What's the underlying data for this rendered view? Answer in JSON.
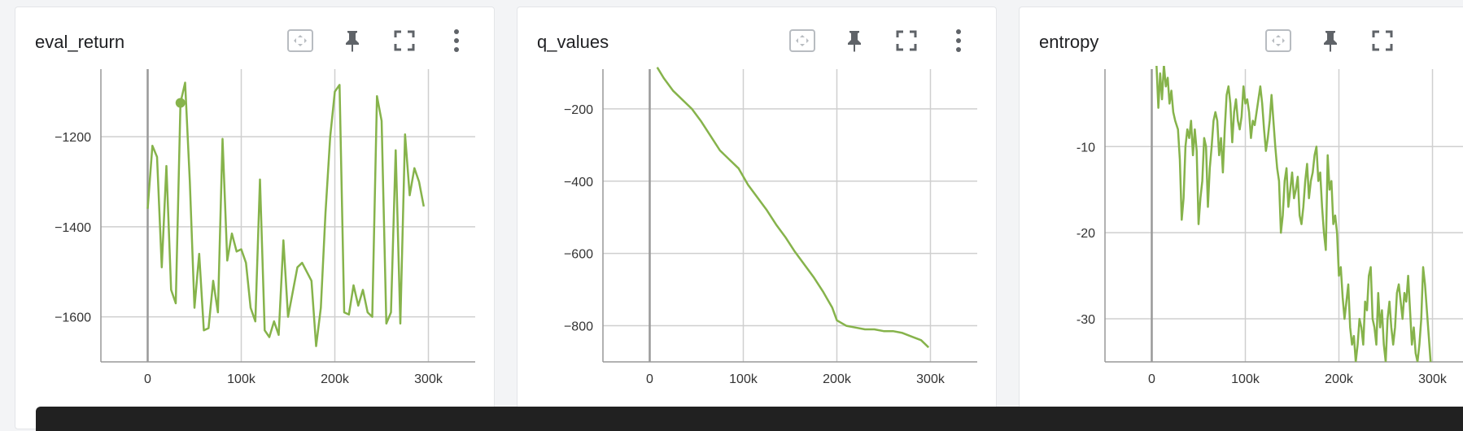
{
  "cards": [
    {
      "title": "eval_return",
      "toolbar": [
        "fit-domain-icon",
        "pin-icon",
        "fullscreen-icon",
        "more-vert-icon"
      ]
    },
    {
      "title": "q_values",
      "toolbar": [
        "fit-domain-icon",
        "pin-icon",
        "fullscreen-icon",
        "more-vert-icon"
      ]
    },
    {
      "title": "entropy",
      "toolbar": [
        "fit-domain-icon",
        "pin-icon",
        "fullscreen-icon"
      ]
    }
  ],
  "colors": {
    "line": "#86b34b",
    "grid": "#cfcfcf",
    "axis": "#999999",
    "icon": "#5f6368",
    "icon_light": "#b8bcc1"
  },
  "chart_data": [
    {
      "type": "line",
      "title": "eval_return",
      "xlim": [
        -50000,
        350000
      ],
      "ylim": [
        -1700,
        -1050
      ],
      "xticks": [
        0,
        100000,
        200000,
        300000
      ],
      "xtick_labels": [
        "0",
        "100k",
        "200k",
        "300k"
      ],
      "yticks": [
        -1200,
        -1400,
        -1600
      ],
      "ytick_labels": [
        "−1200",
        "−1400",
        "−1600"
      ],
      "grid": true,
      "highlight_point": {
        "x": 35000,
        "y": -1125
      },
      "series": [
        {
          "points": [
            [
              0,
              -1360
            ],
            [
              5000,
              -1220
            ],
            [
              10000,
              -1245
            ],
            [
              15000,
              -1490
            ],
            [
              20000,
              -1265
            ],
            [
              25000,
              -1540
            ],
            [
              30000,
              -1570
            ],
            [
              35000,
              -1125
            ],
            [
              40000,
              -1080
            ],
            [
              45000,
              -1300
            ],
            [
              50000,
              -1580
            ],
            [
              55000,
              -1460
            ],
            [
              60000,
              -1630
            ],
            [
              65000,
              -1625
            ],
            [
              70000,
              -1520
            ],
            [
              75000,
              -1590
            ],
            [
              80000,
              -1205
            ],
            [
              85000,
              -1475
            ],
            [
              90000,
              -1415
            ],
            [
              95000,
              -1455
            ],
            [
              100000,
              -1450
            ],
            [
              105000,
              -1480
            ],
            [
              110000,
              -1580
            ],
            [
              115000,
              -1610
            ],
            [
              120000,
              -1295
            ],
            [
              125000,
              -1630
            ],
            [
              130000,
              -1645
            ],
            [
              135000,
              -1610
            ],
            [
              140000,
              -1640
            ],
            [
              145000,
              -1430
            ],
            [
              150000,
              -1600
            ],
            [
              160000,
              -1490
            ],
            [
              165000,
              -1480
            ],
            [
              175000,
              -1520
            ],
            [
              180000,
              -1665
            ],
            [
              185000,
              -1580
            ],
            [
              190000,
              -1370
            ],
            [
              195000,
              -1200
            ],
            [
              200000,
              -1100
            ],
            [
              205000,
              -1085
            ],
            [
              210000,
              -1590
            ],
            [
              215000,
              -1595
            ],
            [
              220000,
              -1530
            ],
            [
              225000,
              -1575
            ],
            [
              230000,
              -1540
            ],
            [
              235000,
              -1590
            ],
            [
              240000,
              -1600
            ],
            [
              245000,
              -1110
            ],
            [
              250000,
              -1165
            ],
            [
              255000,
              -1615
            ],
            [
              260000,
              -1590
            ],
            [
              265000,
              -1230
            ],
            [
              270000,
              -1615
            ],
            [
              275000,
              -1195
            ],
            [
              280000,
              -1330
            ],
            [
              285000,
              -1270
            ],
            [
              290000,
              -1300
            ],
            [
              295000,
              -1355
            ]
          ]
        }
      ]
    },
    {
      "type": "line",
      "title": "q_values",
      "xlim": [
        -50000,
        350000
      ],
      "ylim": [
        -900,
        -90
      ],
      "xticks": [
        0,
        100000,
        200000,
        300000
      ],
      "xtick_labels": [
        "0",
        "100k",
        "200k",
        "300k"
      ],
      "yticks": [
        -200,
        -400,
        -600,
        -800
      ],
      "ytick_labels": [
        "−200",
        "−400",
        "−600",
        "−800"
      ],
      "grid": true,
      "series": [
        {
          "points": [
            [
              8000,
              -85
            ],
            [
              15000,
              -115
            ],
            [
              25000,
              -150
            ],
            [
              35000,
              -175
            ],
            [
              45000,
              -200
            ],
            [
              55000,
              -235
            ],
            [
              65000,
              -275
            ],
            [
              75000,
              -315
            ],
            [
              85000,
              -340
            ],
            [
              95000,
              -365
            ],
            [
              105000,
              -410
            ],
            [
              115000,
              -445
            ],
            [
              125000,
              -480
            ],
            [
              135000,
              -520
            ],
            [
              145000,
              -555
            ],
            [
              155000,
              -595
            ],
            [
              165000,
              -630
            ],
            [
              175000,
              -665
            ],
            [
              185000,
              -705
            ],
            [
              195000,
              -750
            ],
            [
              200000,
              -785
            ],
            [
              210000,
              -800
            ],
            [
              220000,
              -805
            ],
            [
              230000,
              -810
            ],
            [
              240000,
              -810
            ],
            [
              250000,
              -815
            ],
            [
              260000,
              -815
            ],
            [
              270000,
              -820
            ],
            [
              280000,
              -830
            ],
            [
              290000,
              -840
            ],
            [
              298000,
              -860
            ]
          ]
        }
      ]
    },
    {
      "type": "line",
      "title": "entropy",
      "xlim": [
        -50000,
        350000
      ],
      "ylim": [
        -35,
        -1
      ],
      "xticks": [
        0,
        100000,
        200000,
        300000
      ],
      "xtick_labels": [
        "0",
        "100k",
        "200k",
        "300k"
      ],
      "yticks": [
        -10,
        -20,
        -30
      ],
      "ytick_labels": [
        "-10",
        "-20",
        "-30"
      ],
      "grid": true,
      "series": [
        {
          "points": [
            [
              5000,
              -0.5
            ],
            [
              7000,
              -5.5
            ],
            [
              9000,
              -1.5
            ],
            [
              11000,
              -4.5
            ],
            [
              13000,
              -0.5
            ],
            [
              15000,
              -3
            ],
            [
              17000,
              -2
            ],
            [
              19000,
              -5
            ],
            [
              21000,
              -3.5
            ],
            [
              23000,
              -6
            ],
            [
              25000,
              -7
            ],
            [
              28000,
              -8
            ],
            [
              30000,
              -11.5
            ],
            [
              32000,
              -18.5
            ],
            [
              34000,
              -16
            ],
            [
              36000,
              -10
            ],
            [
              38000,
              -8
            ],
            [
              40000,
              -9
            ],
            [
              42000,
              -7
            ],
            [
              44000,
              -11
            ],
            [
              46000,
              -8
            ],
            [
              48000,
              -10.5
            ],
            [
              50000,
              -19
            ],
            [
              52000,
              -16
            ],
            [
              54000,
              -14
            ],
            [
              56000,
              -9
            ],
            [
              58000,
              -10
            ],
            [
              60000,
              -17
            ],
            [
              62000,
              -12.5
            ],
            [
              64000,
              -10
            ],
            [
              66000,
              -7
            ],
            [
              68000,
              -6
            ],
            [
              70000,
              -7
            ],
            [
              72000,
              -11
            ],
            [
              74000,
              -9
            ],
            [
              76000,
              -13
            ],
            [
              78000,
              -8
            ],
            [
              80000,
              -4
            ],
            [
              82000,
              -3
            ],
            [
              84000,
              -5
            ],
            [
              86000,
              -9.5
            ],
            [
              88000,
              -6
            ],
            [
              90000,
              -4.5
            ],
            [
              92000,
              -7
            ],
            [
              94000,
              -8
            ],
            [
              96000,
              -6.5
            ],
            [
              98000,
              -3
            ],
            [
              100000,
              -5
            ],
            [
              102000,
              -4.5
            ],
            [
              104000,
              -6
            ],
            [
              106000,
              -9
            ],
            [
              108000,
              -7
            ],
            [
              110000,
              -7.5
            ],
            [
              112000,
              -6
            ],
            [
              114000,
              -4.5
            ],
            [
              116000,
              -3
            ],
            [
              118000,
              -5
            ],
            [
              120000,
              -8
            ],
            [
              122000,
              -10.5
            ],
            [
              124000,
              -9
            ],
            [
              126000,
              -7
            ],
            [
              128000,
              -4
            ],
            [
              130000,
              -7
            ],
            [
              132000,
              -10
            ],
            [
              134000,
              -12.5
            ],
            [
              136000,
              -14
            ],
            [
              138000,
              -20
            ],
            [
              140000,
              -18
            ],
            [
              142000,
              -14
            ],
            [
              144000,
              -12.5
            ],
            [
              146000,
              -17
            ],
            [
              148000,
              -15
            ],
            [
              150000,
              -13
            ],
            [
              152000,
              -16
            ],
            [
              154000,
              -15
            ],
            [
              156000,
              -13.5
            ],
            [
              158000,
              -18
            ],
            [
              160000,
              -19
            ],
            [
              162000,
              -17
            ],
            [
              164000,
              -14
            ],
            [
              166000,
              -12
            ],
            [
              168000,
              -16
            ],
            [
              170000,
              -14
            ],
            [
              172000,
              -13
            ],
            [
              174000,
              -11
            ],
            [
              176000,
              -10
            ],
            [
              178000,
              -14
            ],
            [
              180000,
              -13
            ],
            [
              182000,
              -17
            ],
            [
              184000,
              -20
            ],
            [
              186000,
              -22
            ],
            [
              188000,
              -11
            ],
            [
              190000,
              -15
            ],
            [
              192000,
              -14
            ],
            [
              194000,
              -19
            ],
            [
              196000,
              -18
            ],
            [
              198000,
              -20
            ],
            [
              200000,
              -25
            ],
            [
              202000,
              -24
            ],
            [
              204000,
              -27.5
            ],
            [
              206000,
              -30
            ],
            [
              208000,
              -28
            ],
            [
              210000,
              -26
            ],
            [
              212000,
              -31
            ],
            [
              214000,
              -33
            ],
            [
              216000,
              -32
            ],
            [
              218000,
              -35
            ],
            [
              220000,
              -33
            ],
            [
              222000,
              -30
            ],
            [
              224000,
              -31
            ],
            [
              226000,
              -33
            ],
            [
              228000,
              -28
            ],
            [
              230000,
              -29
            ],
            [
              232000,
              -25
            ],
            [
              234000,
              -24
            ],
            [
              236000,
              -30
            ],
            [
              238000,
              -31
            ],
            [
              240000,
              -33
            ],
            [
              242000,
              -27
            ],
            [
              244000,
              -31
            ],
            [
              246000,
              -29
            ],
            [
              248000,
              -33
            ],
            [
              250000,
              -35
            ],
            [
              252000,
              -30
            ],
            [
              254000,
              -28
            ],
            [
              256000,
              -31
            ],
            [
              258000,
              -33
            ],
            [
              260000,
              -31
            ],
            [
              262000,
              -27
            ],
            [
              264000,
              -26
            ],
            [
              266000,
              -28
            ],
            [
              268000,
              -30
            ],
            [
              270000,
              -27
            ],
            [
              272000,
              -28
            ],
            [
              274000,
              -25
            ],
            [
              276000,
              -29
            ],
            [
              278000,
              -33
            ],
            [
              280000,
              -31
            ],
            [
              282000,
              -34
            ],
            [
              284000,
              -35
            ],
            [
              286000,
              -33
            ],
            [
              288000,
              -30
            ],
            [
              290000,
              -24
            ],
            [
              292000,
              -26
            ],
            [
              294000,
              -29
            ],
            [
              296000,
              -32
            ],
            [
              298000,
              -35
            ]
          ]
        }
      ]
    }
  ]
}
